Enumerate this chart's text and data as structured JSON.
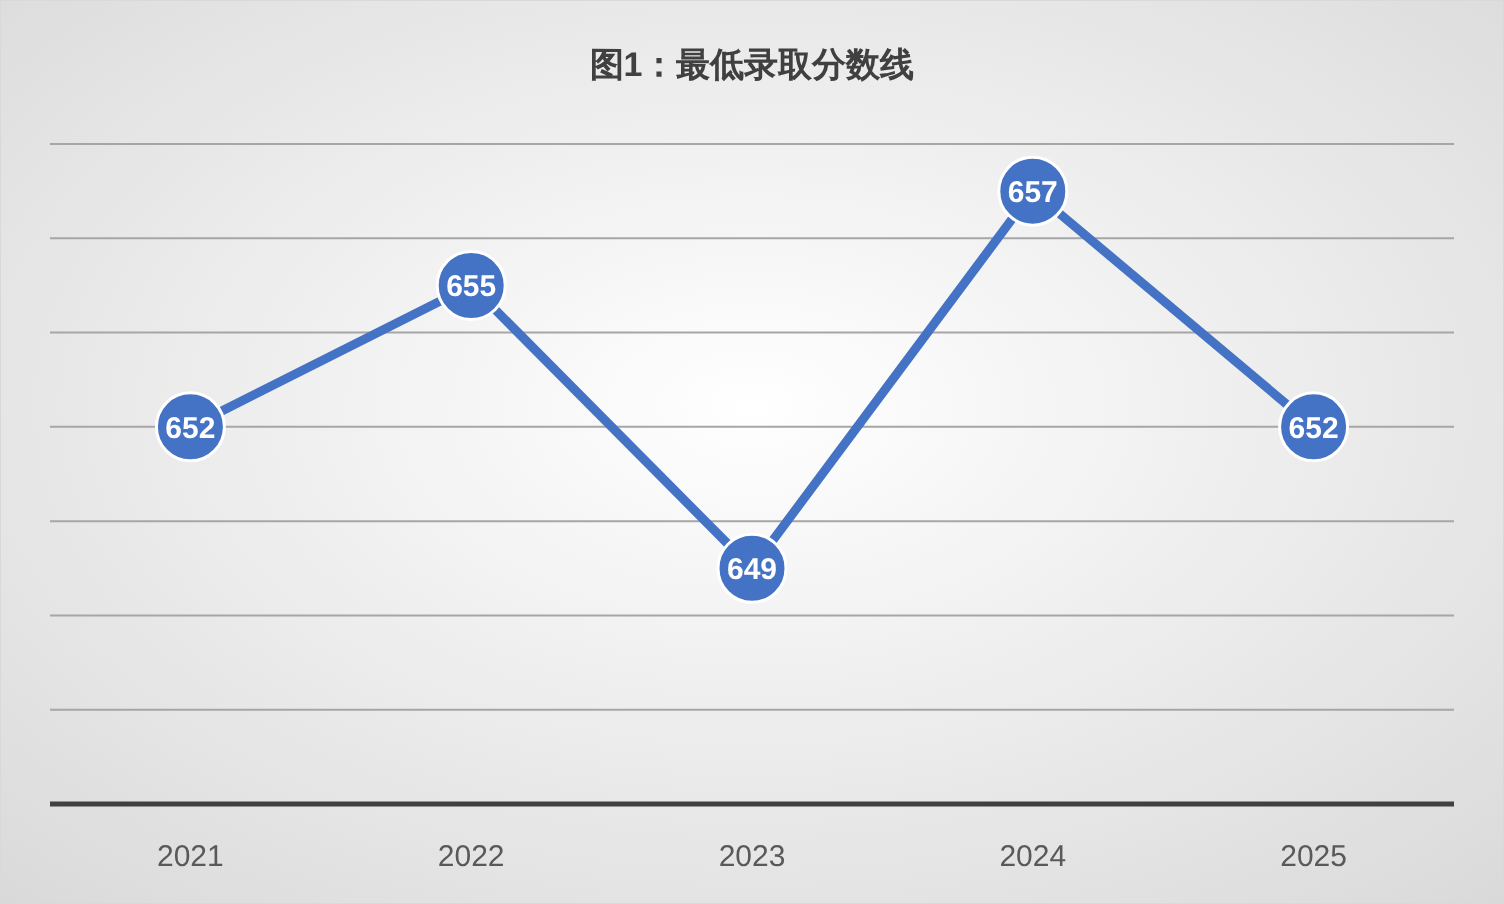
{
  "chart_data": {
    "type": "line",
    "title": "图1：最低录取分数线",
    "categories": [
      "2021",
      "2022",
      "2023",
      "2024",
      "2025"
    ],
    "values": [
      652,
      655,
      649,
      657,
      652
    ],
    "color": "#4472c4",
    "marker": "circle",
    "data_labels": true,
    "ylim": [
      644,
      658
    ],
    "yticks": [
      {
        "value": 644,
        "label": null
      },
      {
        "value": 646,
        "label": null
      },
      {
        "value": 648,
        "label": null
      },
      {
        "value": 650,
        "label": null
      },
      {
        "value": 652,
        "label": null
      },
      {
        "value": 654,
        "label": null
      },
      {
        "value": 656,
        "label": null
      },
      {
        "value": 658,
        "label": null
      }
    ],
    "grid": "y",
    "tick_labels": "x"
  }
}
